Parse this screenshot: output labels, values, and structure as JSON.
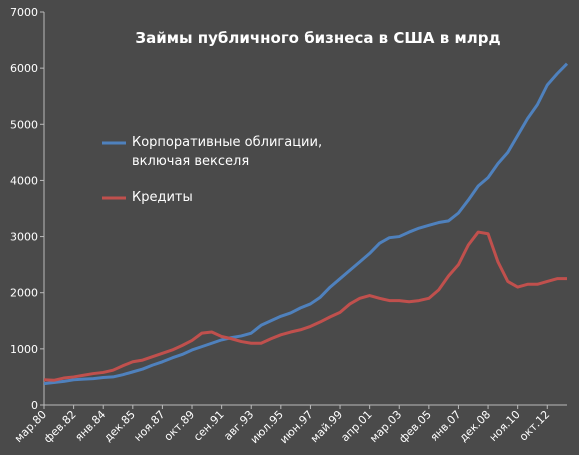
{
  "chart_data": {
    "type": "line",
    "title": "Займы публичного бизнеса в США в млрд",
    "categories": [
      "мар.80",
      null,
      null,
      "фев.82",
      null,
      null,
      "янв.84",
      null,
      null,
      "дек.85",
      null,
      null,
      "ноя.87",
      null,
      null,
      "окт.89",
      null,
      null,
      "сен.91",
      null,
      null,
      "авг.93",
      null,
      null,
      "июл.95",
      null,
      null,
      "июн.97",
      null,
      null,
      "май.99",
      null,
      null,
      "апр.01",
      null,
      null,
      "мар.03",
      null,
      null,
      "фев.05",
      null,
      null,
      "янв.07",
      null,
      null,
      "дек.08",
      null,
      null,
      "ноя.10",
      null,
      null,
      "окт.12",
      null,
      null
    ],
    "series": [
      {
        "name": "Корпоративные облигации, включая векселя",
        "color": "#4f81bd",
        "values": [
          380,
          400,
          420,
          450,
          460,
          470,
          490,
          500,
          540,
          590,
          640,
          710,
          770,
          840,
          900,
          980,
          1040,
          1100,
          1160,
          1200,
          1230,
          1280,
          1420,
          1500,
          1580,
          1640,
          1730,
          1800,
          1920,
          2100,
          2250,
          2400,
          2550,
          2700,
          2880,
          2980,
          3000,
          3080,
          3150,
          3200,
          3250,
          3280,
          3420,
          3650,
          3900,
          4050,
          4300,
          4500,
          4800,
          5100,
          5350,
          5700,
          5900,
          6080
        ]
      },
      {
        "name": "Кредиты",
        "color": "#c0504d",
        "values": [
          450,
          440,
          480,
          500,
          530,
          560,
          580,
          620,
          700,
          770,
          800,
          860,
          920,
          980,
          1060,
          1150,
          1280,
          1300,
          1220,
          1180,
          1130,
          1100,
          1100,
          1180,
          1250,
          1300,
          1340,
          1400,
          1480,
          1570,
          1650,
          1800,
          1900,
          1950,
          1900,
          1860,
          1860,
          1840,
          1860,
          1900,
          2050,
          2300,
          2500,
          2850,
          3080,
          3050,
          2550,
          2200,
          2100,
          2150,
          2150,
          2200,
          2250,
          2250
        ]
      }
    ],
    "ylim": [
      0,
      7000
    ],
    "yticks": [
      0,
      1000,
      2000,
      3000,
      4000,
      5000,
      6000,
      7000
    ],
    "grid": false
  }
}
